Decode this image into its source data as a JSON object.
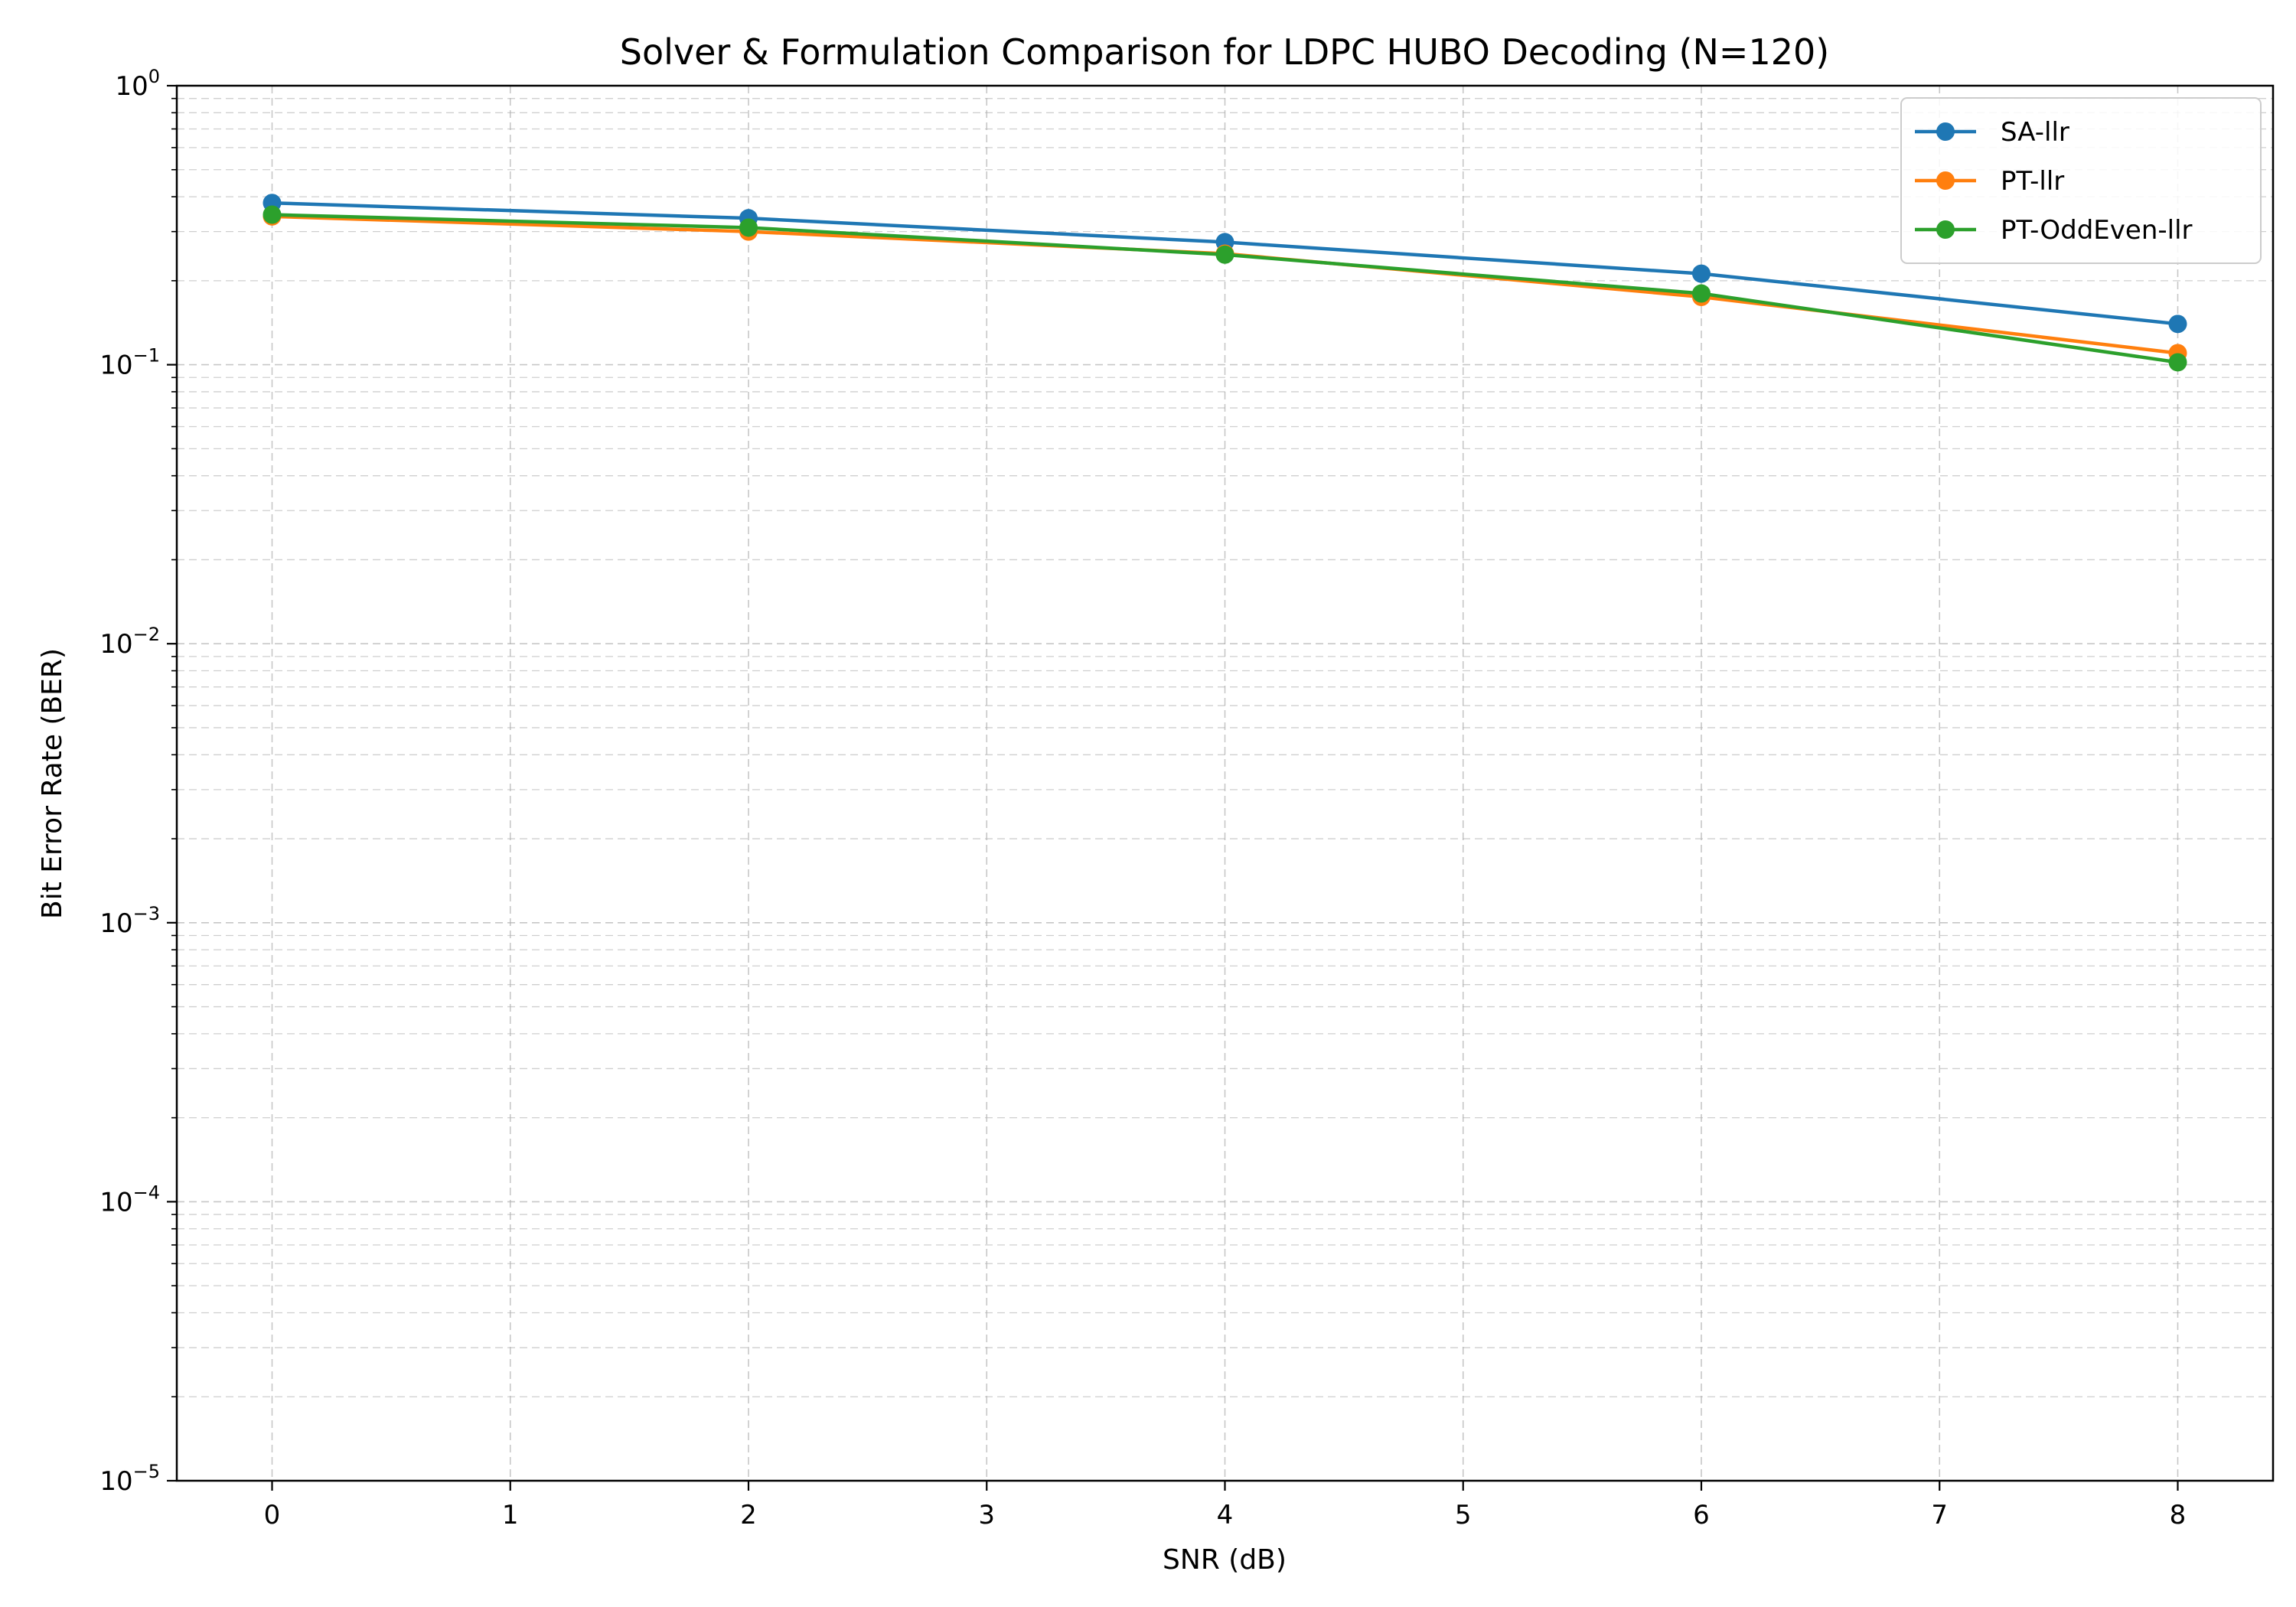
{
  "chart_data": {
    "type": "line",
    "title": "Solver & Formulation Comparison for LDPC HUBO Decoding (N=120)",
    "xlabel": "SNR (dB)",
    "ylabel": "Bit Error Rate (BER)",
    "yscale": "log",
    "xlim": [
      -0.4,
      8.4
    ],
    "ylim": [
      1e-05,
      1
    ],
    "xticks": [
      "0",
      "1",
      "2",
      "3",
      "4",
      "5",
      "6",
      "7",
      "8"
    ],
    "yticks": [
      {
        "base": "10",
        "exp": "−5"
      },
      {
        "base": "10",
        "exp": "−4"
      },
      {
        "base": "10",
        "exp": "−3"
      },
      {
        "base": "10",
        "exp": "−2"
      },
      {
        "base": "10",
        "exp": "−1"
      },
      {
        "base": "10",
        "exp": "0"
      }
    ],
    "grid": true,
    "legend_position": "top-right",
    "x": [
      0,
      2,
      4,
      6,
      8
    ],
    "series": [
      {
        "name": "SA-llr",
        "color": "#1f77b4",
        "values": [
          0.38,
          0.335,
          0.275,
          0.212,
          0.14
        ]
      },
      {
        "name": "PT-llr",
        "color": "#ff7f0e",
        "values": [
          0.34,
          0.3,
          0.25,
          0.175,
          0.11
        ]
      },
      {
        "name": "PT-OddEven-llr",
        "color": "#2ca02c",
        "values": [
          0.345,
          0.31,
          0.248,
          0.18,
          0.102
        ]
      }
    ]
  }
}
